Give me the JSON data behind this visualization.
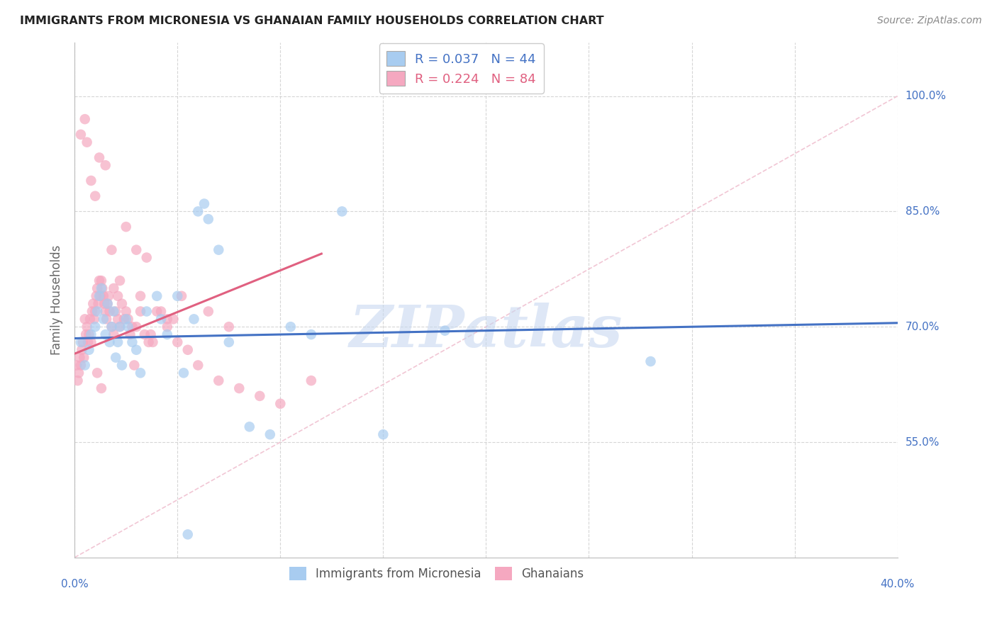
{
  "title": "IMMIGRANTS FROM MICRONESIA VS GHANAIAN FAMILY HOUSEHOLDS CORRELATION CHART",
  "source": "Source: ZipAtlas.com",
  "ylabel": "Family Households",
  "ytick_vals": [
    55.0,
    70.0,
    85.0,
    100.0
  ],
  "ytick_labels": [
    "55.0%",
    "70.0%",
    "85.0%",
    "100.0%"
  ],
  "xlim": [
    0.0,
    40.0
  ],
  "ylim": [
    40.0,
    107.0
  ],
  "legend_blue_r": "0.037",
  "legend_blue_n": "44",
  "legend_pink_r": "0.224",
  "legend_pink_n": "84",
  "blue_color": "#A8CCF0",
  "pink_color": "#F5A8C0",
  "blue_line_color": "#4472C4",
  "pink_line_color": "#E06080",
  "diagonal_color": "#F0C0D0",
  "watermark": "ZIPatlas",
  "watermark_color": "#C8D8F0",
  "blue_trend": [
    0.0,
    68.5,
    40.0,
    70.5
  ],
  "pink_trend": [
    0.0,
    66.5,
    12.0,
    79.5
  ],
  "blue_scatter_x": [
    0.3,
    0.5,
    0.7,
    0.8,
    1.0,
    1.1,
    1.2,
    1.3,
    1.4,
    1.5,
    1.6,
    1.7,
    1.8,
    1.9,
    2.0,
    2.1,
    2.2,
    2.3,
    2.5,
    2.6,
    2.8,
    3.0,
    3.2,
    3.5,
    4.0,
    4.2,
    4.5,
    5.0,
    5.3,
    5.8,
    6.0,
    6.3,
    6.5,
    7.0,
    7.5,
    8.5,
    9.5,
    10.5,
    11.5,
    13.0,
    15.0,
    18.0,
    28.0,
    5.5
  ],
  "blue_scatter_y": [
    68.0,
    65.0,
    67.0,
    69.0,
    70.0,
    72.0,
    74.0,
    75.0,
    71.0,
    69.0,
    73.0,
    68.0,
    70.0,
    72.0,
    66.0,
    68.0,
    70.0,
    65.0,
    71.0,
    70.0,
    68.0,
    67.0,
    64.0,
    72.0,
    74.0,
    71.0,
    69.0,
    74.0,
    64.0,
    71.0,
    85.0,
    86.0,
    84.0,
    80.0,
    68.0,
    57.0,
    56.0,
    70.0,
    69.0,
    85.0,
    56.0,
    69.5,
    65.5,
    43.0
  ],
  "pink_scatter_x": [
    0.1,
    0.15,
    0.2,
    0.25,
    0.3,
    0.35,
    0.4,
    0.45,
    0.5,
    0.55,
    0.6,
    0.65,
    0.7,
    0.75,
    0.8,
    0.85,
    0.9,
    0.95,
    1.0,
    1.05,
    1.1,
    1.15,
    1.2,
    1.25,
    1.3,
    1.35,
    1.4,
    1.45,
    1.5,
    1.55,
    1.6,
    1.65,
    1.7,
    1.8,
    1.9,
    2.0,
    2.1,
    2.2,
    2.3,
    2.4,
    2.5,
    2.6,
    2.8,
    3.0,
    3.2,
    3.4,
    3.6,
    3.8,
    4.0,
    4.5,
    5.0,
    5.5,
    6.0,
    7.0,
    8.0,
    9.0,
    10.0,
    11.5,
    0.5,
    0.8,
    1.0,
    1.2,
    1.5,
    1.8,
    2.2,
    2.5,
    3.0,
    3.5,
    4.2,
    5.2,
    6.5,
    7.5,
    4.5,
    3.2,
    2.7,
    2.9,
    1.9,
    2.1,
    3.7,
    4.8,
    0.3,
    0.6,
    1.1,
    1.3
  ],
  "pink_scatter_y": [
    65.0,
    63.0,
    64.0,
    66.0,
    65.0,
    67.0,
    68.0,
    66.0,
    71.0,
    69.0,
    70.0,
    68.0,
    69.0,
    71.0,
    68.0,
    72.0,
    73.0,
    71.0,
    72.0,
    74.0,
    75.0,
    73.0,
    76.0,
    74.0,
    76.0,
    75.0,
    74.0,
    73.0,
    72.0,
    71.0,
    73.0,
    74.0,
    72.0,
    70.0,
    69.0,
    72.0,
    71.0,
    70.0,
    73.0,
    71.0,
    72.0,
    71.0,
    70.0,
    70.0,
    72.0,
    69.0,
    68.0,
    68.0,
    72.0,
    70.0,
    68.0,
    67.0,
    65.0,
    63.0,
    62.0,
    61.0,
    60.0,
    63.0,
    97.0,
    89.0,
    87.0,
    92.0,
    91.0,
    80.0,
    76.0,
    83.0,
    80.0,
    79.0,
    72.0,
    74.0,
    72.0,
    70.0,
    71.0,
    74.0,
    69.0,
    65.0,
    75.0,
    74.0,
    69.0,
    71.0,
    95.0,
    94.0,
    64.0,
    62.0
  ]
}
